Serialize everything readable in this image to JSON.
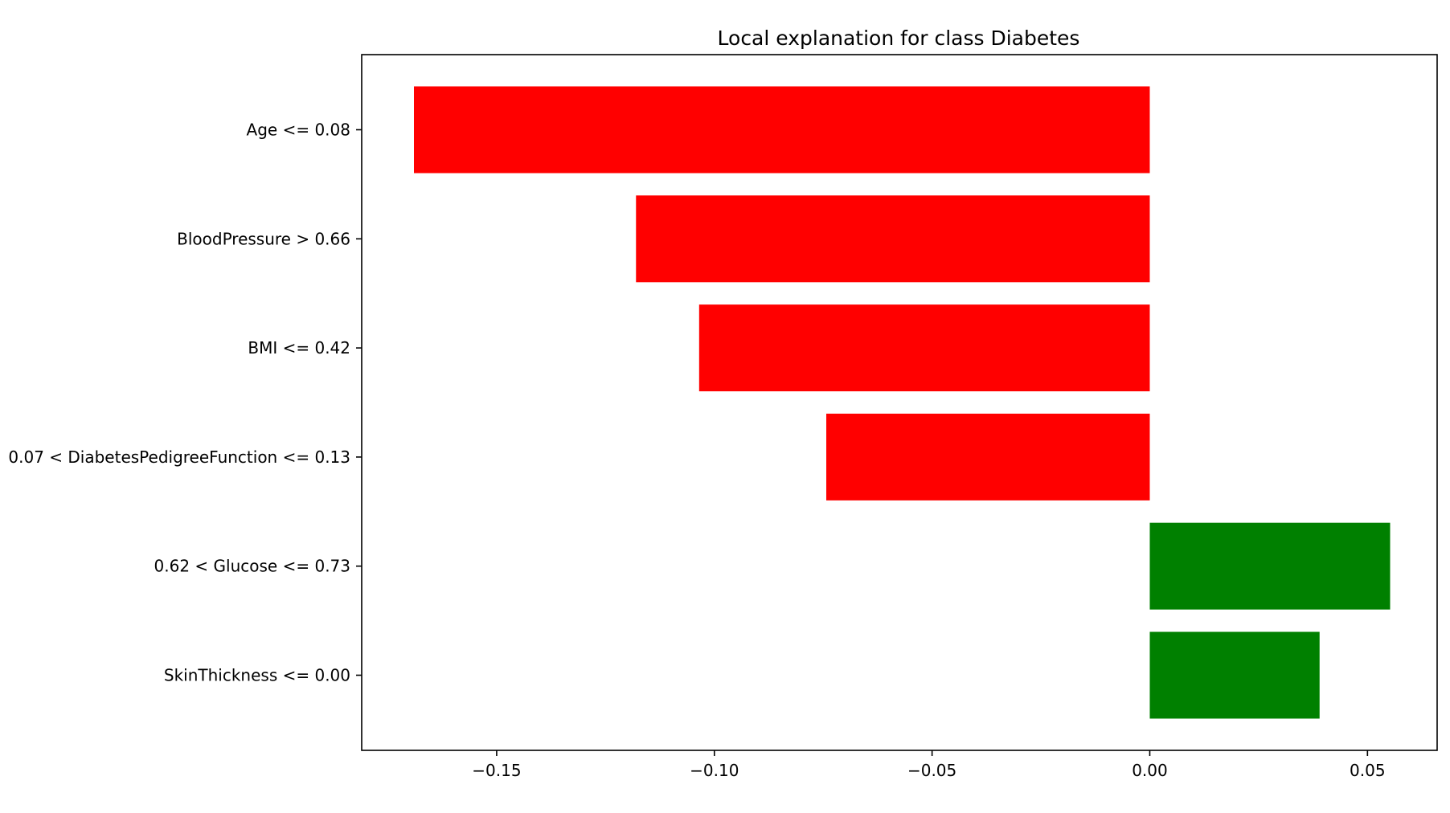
{
  "chart_data": {
    "type": "bar",
    "orientation": "horizontal",
    "title": "Local explanation for class Diabetes",
    "xlabel": "",
    "ylabel": "",
    "categories": [
      "Age <= 0.08",
      "BloodPressure > 0.66",
      "BMI <= 0.42",
      "0.07 < DiabetesPedigreeFunction <= 0.13",
      "0.62 < Glucose <= 0.73",
      "SkinThickness <= 0.00"
    ],
    "values": [
      -0.169,
      -0.118,
      -0.1035,
      -0.0743,
      0.0552,
      0.039
    ],
    "xlim": [
      -0.181,
      0.066
    ],
    "xticks": [
      -0.15,
      -0.1,
      -0.05,
      0.0,
      0.05
    ],
    "xtick_labels": [
      "−0.15",
      "−0.10",
      "−0.05",
      "0.00",
      "0.05"
    ],
    "grid": false,
    "legend": "none",
    "colors": {
      "negative": "#ff0000",
      "positive": "#008000",
      "axes": "#000000"
    }
  }
}
